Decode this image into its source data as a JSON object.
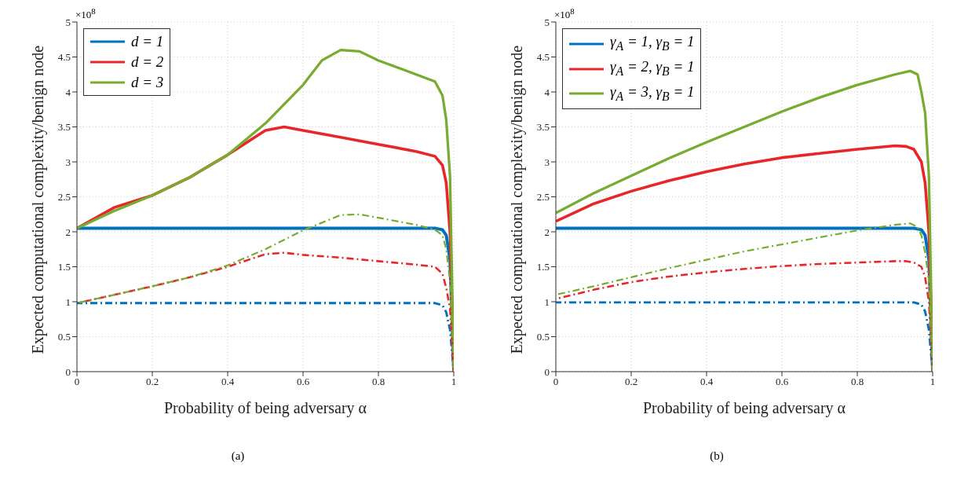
{
  "chart_data": [
    {
      "type": "line",
      "xlabel": "Probability of being adversary α",
      "ylabel": "Expected computational complexity/benign node",
      "xlim": [
        0,
        1
      ],
      "xticks": [
        0,
        0.2,
        0.4,
        0.6,
        0.8,
        1
      ],
      "ylim": [
        0,
        5
      ],
      "yticks": [
        0,
        0.5,
        1,
        1.5,
        2,
        2.5,
        3,
        3.5,
        4,
        4.5,
        5
      ],
      "grid": true,
      "legend": "top left",
      "marker": "none",
      "annotations": [
        "×10$^{8}$",
        "(a)"
      ],
      "series": [
        {
          "name": "d = 1",
          "color": "#0072bd",
          "line_style": "solid",
          "x": [
            0,
            0.5,
            0.95,
            0.97,
            0.98,
            0.99,
            1
          ],
          "values": [
            2.05,
            2.05,
            2.05,
            2.03,
            1.95,
            1.6,
            0
          ]
        },
        {
          "name": "d = 2",
          "color": "#e8262a",
          "line_style": "solid",
          "x": [
            0,
            0.1,
            0.2,
            0.3,
            0.4,
            0.5,
            0.55,
            0.6,
            0.7,
            0.8,
            0.9,
            0.95,
            0.97,
            0.98,
            0.99,
            1
          ],
          "values": [
            2.05,
            2.35,
            2.52,
            2.78,
            3.1,
            3.45,
            3.5,
            3.45,
            3.35,
            3.25,
            3.15,
            3.08,
            2.95,
            2.7,
            2.0,
            0
          ]
        },
        {
          "name": "d = 3",
          "color": "#77ac30",
          "line_style": "solid",
          "x": [
            0,
            0.1,
            0.2,
            0.3,
            0.4,
            0.5,
            0.6,
            0.65,
            0.7,
            0.75,
            0.8,
            0.9,
            0.95,
            0.97,
            0.98,
            0.99,
            1
          ],
          "values": [
            2.05,
            2.3,
            2.52,
            2.78,
            3.1,
            3.55,
            4.1,
            4.45,
            4.6,
            4.58,
            4.45,
            4.25,
            4.15,
            3.95,
            3.6,
            2.8,
            0
          ]
        },
        {
          "color": "#0072bd",
          "line_style": "dashed",
          "x": [
            0,
            0.5,
            0.95,
            0.97,
            0.98,
            0.99,
            1
          ],
          "values": [
            0.98,
            0.98,
            0.98,
            0.95,
            0.85,
            0.6,
            0
          ]
        },
        {
          "color": "#e8262a",
          "line_style": "dashed",
          "x": [
            0,
            0.1,
            0.2,
            0.3,
            0.4,
            0.5,
            0.55,
            0.6,
            0.7,
            0.8,
            0.9,
            0.95,
            0.97,
            0.98,
            0.99,
            1
          ],
          "values": [
            0.98,
            1.1,
            1.22,
            1.35,
            1.5,
            1.68,
            1.7,
            1.67,
            1.63,
            1.58,
            1.53,
            1.5,
            1.4,
            1.2,
            0.9,
            0
          ]
        },
        {
          "color": "#77ac30",
          "line_style": "dashed",
          "x": [
            0,
            0.1,
            0.2,
            0.3,
            0.4,
            0.5,
            0.6,
            0.7,
            0.75,
            0.8,
            0.9,
            0.95,
            0.97,
            0.98,
            0.99,
            1
          ],
          "values": [
            0.98,
            1.1,
            1.22,
            1.35,
            1.52,
            1.75,
            2.02,
            2.24,
            2.25,
            2.2,
            2.1,
            2.03,
            1.95,
            1.75,
            1.3,
            0
          ]
        }
      ]
    },
    {
      "type": "line",
      "xlabel": "Probability of being adversary α",
      "ylabel": "Expected computational complexity/benign node",
      "xlim": [
        0,
        1
      ],
      "xticks": [
        0,
        0.2,
        0.4,
        0.6,
        0.8,
        1
      ],
      "ylim": [
        0,
        5
      ],
      "yticks": [
        0,
        0.5,
        1,
        1.5,
        2,
        2.5,
        3,
        3.5,
        4,
        4.5,
        5
      ],
      "grid": true,
      "legend": "top left",
      "marker": "none",
      "annotations": [
        "×10$^{8}$",
        "(b)"
      ],
      "series": [
        {
          "name": "γ$_{A}$ = 1, γ$_{B}$ = 1",
          "color": "#0072bd",
          "line_style": "solid",
          "x": [
            0,
            0.5,
            0.95,
            0.97,
            0.98,
            0.99,
            1
          ],
          "values": [
            2.05,
            2.05,
            2.05,
            2.03,
            1.95,
            1.6,
            0
          ]
        },
        {
          "name": "γ$_{A}$ = 2, γ$_{B}$ = 1",
          "color": "#e8262a",
          "line_style": "solid",
          "x": [
            0,
            0.1,
            0.2,
            0.3,
            0.4,
            0.5,
            0.6,
            0.7,
            0.8,
            0.9,
            0.93,
            0.95,
            0.97,
            0.98,
            0.99,
            1
          ],
          "values": [
            2.15,
            2.4,
            2.58,
            2.73,
            2.86,
            2.97,
            3.06,
            3.12,
            3.18,
            3.23,
            3.22,
            3.18,
            3.0,
            2.7,
            2.0,
            0
          ]
        },
        {
          "name": "γ$_{A}$ = 3, γ$_{B}$ = 1",
          "color": "#77ac30",
          "line_style": "solid",
          "x": [
            0,
            0.1,
            0.2,
            0.3,
            0.4,
            0.5,
            0.6,
            0.7,
            0.8,
            0.9,
            0.94,
            0.96,
            0.97,
            0.98,
            0.99,
            1
          ],
          "values": [
            2.27,
            2.55,
            2.8,
            3.05,
            3.28,
            3.5,
            3.72,
            3.92,
            4.1,
            4.25,
            4.3,
            4.25,
            4.0,
            3.7,
            2.8,
            0
          ]
        },
        {
          "color": "#0072bd",
          "line_style": "dashed",
          "x": [
            0,
            0.5,
            0.95,
            0.97,
            0.98,
            0.99,
            1
          ],
          "values": [
            0.99,
            0.99,
            0.99,
            0.96,
            0.86,
            0.6,
            0
          ]
        },
        {
          "color": "#e8262a",
          "line_style": "dashed",
          "x": [
            0,
            0.1,
            0.2,
            0.3,
            0.4,
            0.5,
            0.6,
            0.7,
            0.8,
            0.9,
            0.93,
            0.95,
            0.97,
            0.98,
            0.99,
            1
          ],
          "values": [
            1.04,
            1.17,
            1.28,
            1.36,
            1.42,
            1.47,
            1.51,
            1.54,
            1.56,
            1.58,
            1.58,
            1.56,
            1.5,
            1.35,
            1.0,
            0
          ]
        },
        {
          "color": "#77ac30",
          "line_style": "dashed",
          "x": [
            0,
            0.1,
            0.2,
            0.3,
            0.4,
            0.5,
            0.6,
            0.7,
            0.8,
            0.9,
            0.94,
            0.96,
            0.97,
            0.98,
            0.99,
            1
          ],
          "values": [
            1.1,
            1.22,
            1.35,
            1.48,
            1.6,
            1.72,
            1.82,
            1.92,
            2.02,
            2.1,
            2.12,
            2.07,
            1.95,
            1.7,
            1.3,
            0
          ]
        }
      ]
    }
  ]
}
